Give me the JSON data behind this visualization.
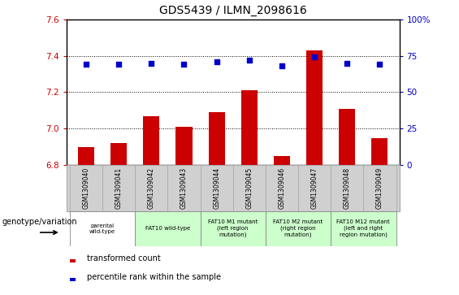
{
  "title": "GDS5439 / ILMN_2098616",
  "samples": [
    "GSM1309040",
    "GSM1309041",
    "GSM1309042",
    "GSM1309043",
    "GSM1309044",
    "GSM1309045",
    "GSM1309046",
    "GSM1309047",
    "GSM1309048",
    "GSM1309049"
  ],
  "bar_values": [
    6.9,
    6.92,
    7.07,
    7.01,
    7.09,
    7.21,
    6.85,
    7.43,
    7.11,
    6.95
  ],
  "percentile_values": [
    69,
    69,
    70,
    69,
    71,
    72,
    68,
    74,
    70,
    69
  ],
  "bar_color": "#cc0000",
  "scatter_color": "#0000cc",
  "ylim_left": [
    6.8,
    7.6
  ],
  "ylim_right": [
    0,
    100
  ],
  "yticks_left": [
    6.8,
    7.0,
    7.2,
    7.4,
    7.6
  ],
  "yticks_right": [
    0,
    25,
    50,
    75,
    100
  ],
  "dotted_lines": [
    7.0,
    7.2,
    7.4
  ],
  "genotype_groups": [
    {
      "label": "parental\nwild-type",
      "start": 0,
      "end": 2,
      "color": "#ffffff"
    },
    {
      "label": "FAT10 wild-type",
      "start": 2,
      "end": 4,
      "color": "#ccffcc"
    },
    {
      "label": "FAT10 M1 mutant\n(left region\nmutation)",
      "start": 4,
      "end": 6,
      "color": "#ccffcc"
    },
    {
      "label": "FAT10 M2 mutant\n(right region\nmutation)",
      "start": 6,
      "end": 8,
      "color": "#ccffcc"
    },
    {
      "label": "FAT10 M12 mutant\n(left and right\nregion mutation)",
      "start": 8,
      "end": 10,
      "color": "#ccffcc"
    }
  ],
  "legend_red_label": "transformed count",
  "legend_blue_label": "percentile rank within the sample",
  "genotype_label": "genotype/variation",
  "label_bg": "#d0d0d0",
  "plot_bg": "#ffffff"
}
